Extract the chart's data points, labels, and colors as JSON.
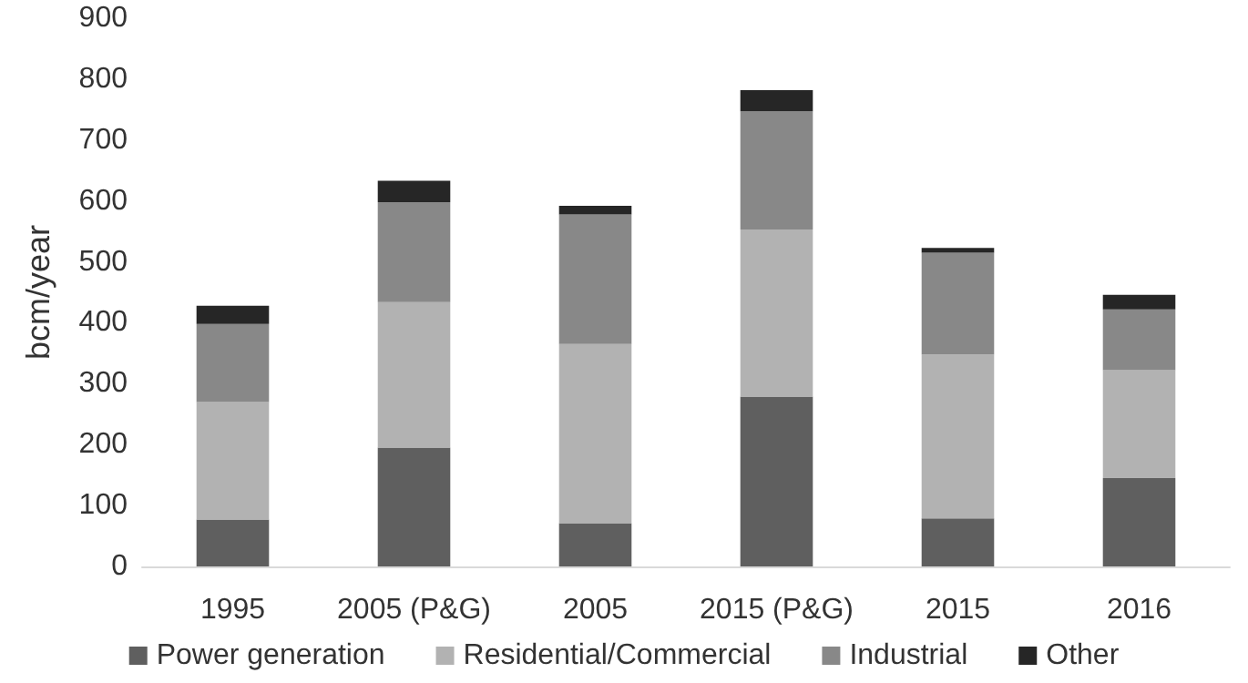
{
  "chart_data": {
    "type": "bar",
    "stacked": true,
    "ylabel": "bcm/year",
    "categories": [
      "1995",
      "2005 (P&G)",
      "2005",
      "2015 (P&G)",
      "2015",
      "2016"
    ],
    "series": [
      {
        "name": "Power generation",
        "color": "#5f5f5f",
        "values": [
          77,
          195,
          71,
          279,
          79,
          145
        ]
      },
      {
        "name": "Residential/Commercial",
        "color": "#b2b2b2",
        "values": [
          193,
          239,
          294,
          274,
          269,
          177
        ]
      },
      {
        "name": "Industrial",
        "color": "#888888",
        "values": [
          128,
          164,
          213,
          194,
          167,
          100
        ]
      },
      {
        "name": "Other",
        "color": "#262626",
        "values": [
          30,
          35,
          14,
          35,
          8,
          24
        ]
      }
    ],
    "ylim": [
      0,
      900
    ],
    "yticks": [
      0,
      100,
      200,
      300,
      400,
      500,
      600,
      700,
      800,
      900
    ],
    "grid": false,
    "legend": "bottom"
  }
}
